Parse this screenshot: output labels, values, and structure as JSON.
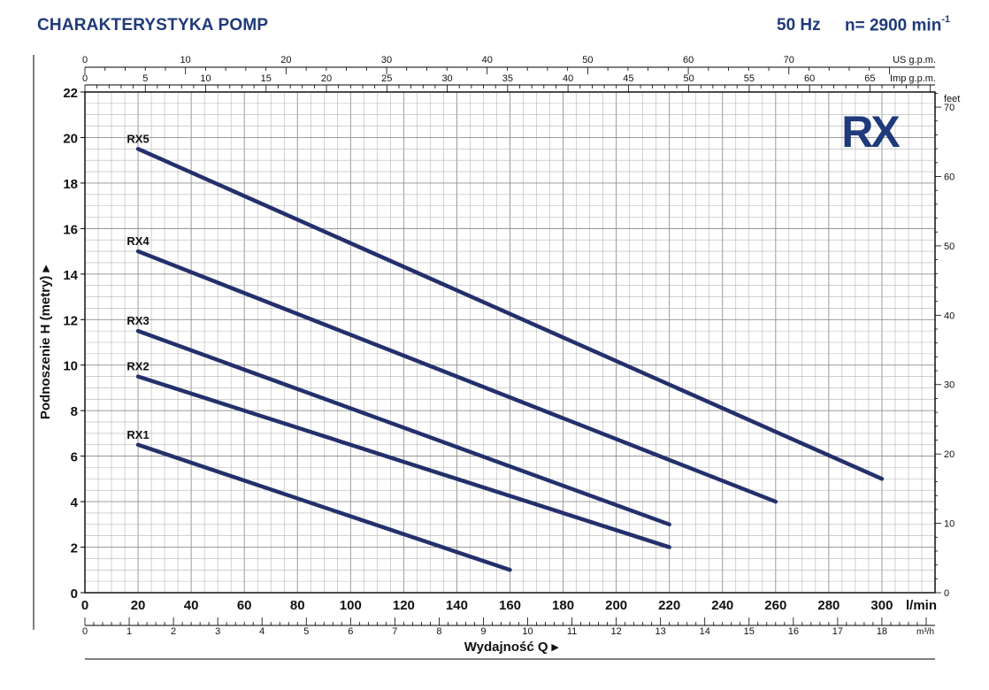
{
  "header": {
    "title": "CHARAKTERYSTYKA POMP",
    "frequency": "50 Hz",
    "speed": "n= 2900 min",
    "speed_exp": "-1"
  },
  "logo": {
    "text": "RX",
    "color": "#1f3a7a"
  },
  "colors": {
    "curve": "#23306b",
    "grid": "#b4b4b4",
    "axis": "#000000",
    "title": "#1f3a7a"
  },
  "chart_data": {
    "type": "line",
    "title": "",
    "xlabel": "Wydajność Q",
    "ylabel": "Podnoszenie H (metry)",
    "xunit": "l/min",
    "xlim": [
      0,
      320
    ],
    "ylim": [
      0,
      22
    ],
    "x_ticks": [
      "0",
      "20",
      "40",
      "60",
      "80",
      "100",
      "120",
      "140",
      "160",
      "180",
      "200",
      "220",
      "240",
      "260",
      "280",
      "300"
    ],
    "y_ticks": [
      "0",
      "2",
      "4",
      "6",
      "8",
      "10",
      "12",
      "14",
      "16",
      "18",
      "20",
      "22"
    ],
    "secondary_axes": {
      "feet": {
        "label": "feet",
        "ticks": [
          "0",
          "10",
          "20",
          "30",
          "40",
          "50",
          "60",
          "70"
        ]
      },
      "us_gpm": {
        "label": "US g.p.m.",
        "ticks": [
          "0",
          "10",
          "20",
          "30",
          "40",
          "50",
          "60",
          "70"
        ]
      },
      "imp_gpm": {
        "label": "Imp g.p.m.",
        "ticks": [
          "0",
          "5",
          "10",
          "15",
          "20",
          "25",
          "30",
          "35",
          "40",
          "45",
          "50",
          "55",
          "60",
          "65"
        ]
      },
      "m3h": {
        "label": "m³/h",
        "ticks": [
          "0",
          "1",
          "2",
          "3",
          "4",
          "5",
          "6",
          "7",
          "8",
          "9",
          "10",
          "11",
          "12",
          "13",
          "14",
          "15",
          "16",
          "17",
          "18"
        ]
      }
    },
    "series": [
      {
        "name": "RX1",
        "x": [
          20,
          160
        ],
        "y": [
          6.5,
          1
        ]
      },
      {
        "name": "RX2",
        "x": [
          20,
          220
        ],
        "y": [
          9.5,
          2
        ]
      },
      {
        "name": "RX3",
        "x": [
          20,
          220
        ],
        "y": [
          11.5,
          3
        ]
      },
      {
        "name": "RX4",
        "x": [
          20,
          260
        ],
        "y": [
          15,
          4
        ]
      },
      {
        "name": "RX5",
        "x": [
          20,
          300
        ],
        "y": [
          19.5,
          5
        ]
      }
    ],
    "grid": true
  }
}
